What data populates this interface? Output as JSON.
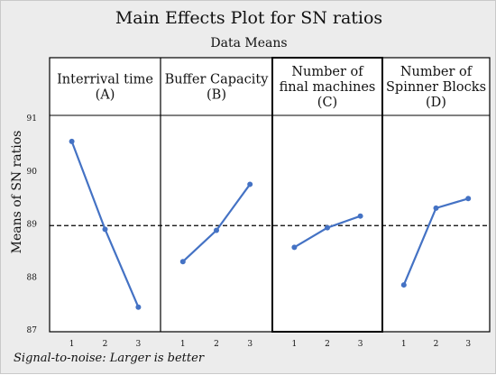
{
  "chart_data": {
    "type": "line",
    "title": "Main Effects Plot for SN ratios",
    "subtitle": "Data Means",
    "ylabel": "Means of SN ratios",
    "ylim": [
      87,
      91
    ],
    "yticks": [
      "87",
      "88",
      "89",
      "90",
      "91"
    ],
    "reference_line": 88.97,
    "footnote": "Signal-to-noise: Larger is better",
    "panels": [
      {
        "title_lines": [
          "Interrival time",
          "(A)"
        ],
        "x": [
          "1",
          "2",
          "3"
        ],
        "values": [
          90.56,
          88.9,
          87.43
        ]
      },
      {
        "title_lines": [
          "Buffer Capacity",
          "(B)"
        ],
        "x": [
          "1",
          "2",
          "3"
        ],
        "values": [
          88.29,
          88.88,
          89.75
        ]
      },
      {
        "title_lines": [
          "Number of",
          "final machines",
          "(C)"
        ],
        "x": [
          "1",
          "2",
          "3"
        ],
        "values": [
          88.56,
          88.93,
          89.15
        ]
      },
      {
        "title_lines": [
          "Number of",
          "Spinner Blocks",
          "(D)"
        ],
        "x": [
          "1",
          "2",
          "3"
        ],
        "values": [
          87.85,
          89.3,
          89.48
        ]
      }
    ],
    "colors": {
      "line": "#4472c4",
      "reference": "#000000",
      "plot_bg": "#ffffff",
      "figure_bg": "#ececec"
    },
    "grid": false
  }
}
